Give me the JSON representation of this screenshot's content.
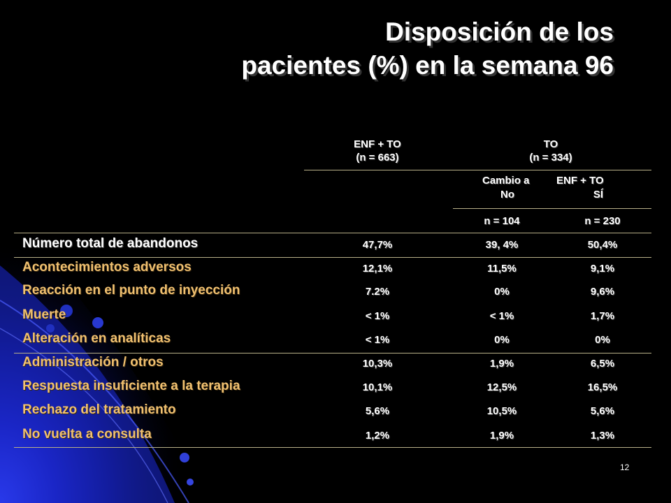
{
  "slide": {
    "title_line1": "Disposición de los",
    "title_line2": "pacientes (%) en la semana 96",
    "page_number": "12"
  },
  "table": {
    "headers": {
      "enf_to_line1": "ENF + TO",
      "enf_to_line2": "(n = 663)",
      "to_line1": "TO",
      "to_line2": "(n = 334)",
      "switch_prefix": "Cambio a",
      "switch_suffix": "ENF + TO",
      "no_label": "No",
      "si_label": "SÍ",
      "n_no": "n = 104",
      "n_si": "n = 230"
    },
    "rows": [
      {
        "label": "Número total de abandonos",
        "enf": "47,7%",
        "no": "39, 4%",
        "si": "50,4%"
      },
      {
        "label": "Acontecimientos adversos",
        "enf": "12,1%",
        "no": "11,5%",
        "si": "9,1%"
      },
      {
        "label": "Reacción en el punto de inyección",
        "enf": "7.2%",
        "no": "0%",
        "si": "9,6%"
      },
      {
        "label": "Muerte",
        "enf": "< 1%",
        "no": "< 1%",
        "si": "1,7%"
      },
      {
        "label": "Alteración en analíticas",
        "enf": "< 1%",
        "no": "0%",
        "si": "0%"
      },
      {
        "label": "Administración / otros",
        "enf": "10,3%",
        "no": "1,9%",
        "si": "6,5%"
      },
      {
        "label": "Respuesta insuficiente a la terapia",
        "enf": "10,1%",
        "no": "12,5%",
        "si": "16,5%"
      },
      {
        "label": "Rechazo del tratamiento",
        "enf": "5,6%",
        "no": "10,5%",
        "si": "5,6%"
      },
      {
        "label": "No vuelta a consulta",
        "enf": "1,2%",
        "no": "1,9%",
        "si": "1,3%"
      }
    ]
  }
}
